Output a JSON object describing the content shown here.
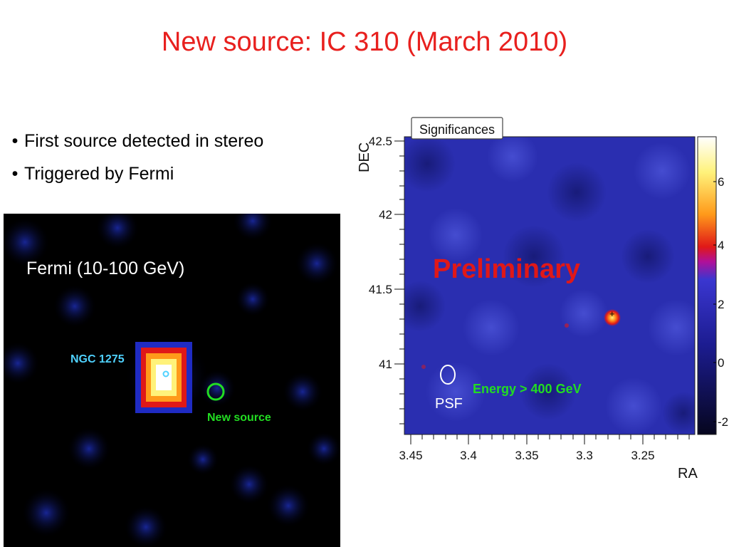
{
  "slide": {
    "title": "New source: IC 310 (March 2010)",
    "bullets": [
      "First source detected in stereo",
      "Triggered by Fermi"
    ]
  },
  "fermi_panel": {
    "label": "Fermi (10-100 GeV)",
    "source_label": "NGC 1275",
    "new_source_label": "New source",
    "colors": {
      "label_cyan": "#4fd2ff",
      "new_source_green": "#22dd22",
      "background": "#000000"
    }
  },
  "magic_panel": {
    "box_title": "Significances",
    "watermark": "Preliminary",
    "energy_label": "Energy > 400 GeV",
    "psf_label": "PSF",
    "x_axis_title": "RA",
    "y_axis_title": "DEC",
    "x_ticks": [
      "3.45",
      "3.4",
      "3.35",
      "3.3",
      "3.25"
    ],
    "y_ticks": [
      "42.5",
      "42",
      "41.5",
      "41"
    ],
    "colorbar_ticks": [
      "6",
      "4",
      "2",
      "0",
      "-2"
    ],
    "colors": {
      "watermark_red": "#e01818",
      "energy_green": "#22dd22",
      "map_blue": "#2a2eb0"
    }
  }
}
